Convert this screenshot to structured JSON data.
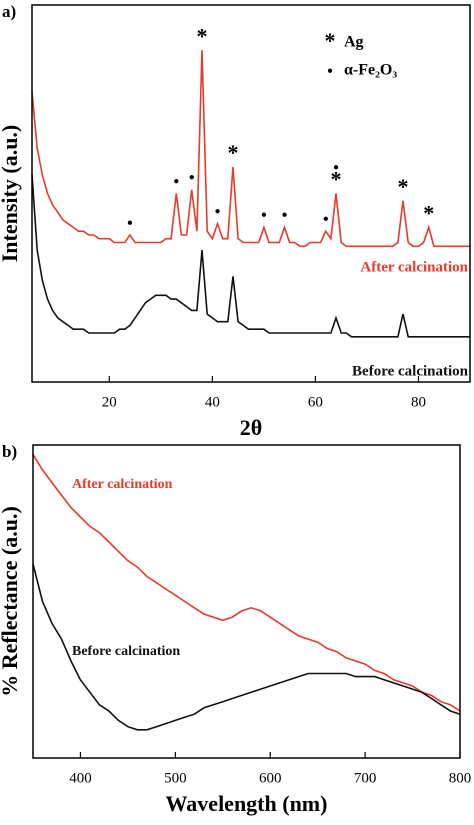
{
  "chart_data": [
    {
      "type": "line",
      "panel_label": "a)",
      "xlabel": "2θ",
      "ylabel": "Intensity (a.u.)",
      "xlim": [
        5,
        90
      ],
      "xticks": [
        20,
        40,
        60,
        80
      ],
      "ylim": [
        0,
        100
      ],
      "x": [
        5,
        6,
        7,
        8,
        9,
        10,
        11,
        12,
        13,
        14,
        15,
        16,
        17,
        18,
        19,
        20,
        21,
        22,
        23,
        24,
        25,
        26,
        27,
        28,
        29,
        30,
        31,
        32,
        33,
        34,
        35,
        36,
        37,
        38,
        39,
        40,
        41,
        42,
        43,
        44,
        45,
        46,
        47,
        48,
        49,
        50,
        51,
        52,
        53,
        54,
        55,
        56,
        57,
        58,
        59,
        60,
        61,
        62,
        63,
        64,
        65,
        66,
        67,
        68,
        69,
        70,
        71,
        72,
        73,
        74,
        75,
        76,
        77,
        78,
        79,
        80,
        81,
        82,
        83,
        84,
        85,
        86,
        87,
        88,
        89,
        90
      ],
      "series": [
        {
          "name": "After calcination",
          "color": "#e8392b",
          "values": [
            77,
            62,
            55,
            50,
            47,
            45,
            43,
            42,
            41,
            40,
            40,
            39,
            39,
            38,
            38,
            38,
            37,
            37,
            37,
            39,
            37,
            37,
            37,
            37,
            37,
            37,
            38,
            38,
            50,
            39,
            39,
            51,
            40,
            88,
            40,
            38,
            42,
            38,
            38,
            57,
            38,
            37,
            37,
            37,
            37,
            41,
            37,
            37,
            37,
            41,
            37,
            37,
            36,
            36,
            37,
            37,
            37,
            40,
            38,
            50,
            37,
            36,
            36,
            36,
            36,
            36,
            36,
            36,
            36,
            36,
            36,
            37,
            48,
            37,
            36,
            36,
            37,
            41,
            36,
            36,
            36,
            36,
            36,
            36,
            36,
            36
          ]
        },
        {
          "name": "Before calcination",
          "color": "#111111",
          "values": [
            55,
            35,
            27,
            22,
            19,
            17,
            16,
            15,
            14,
            14,
            14,
            13,
            13,
            13,
            13,
            13,
            13,
            14,
            14,
            15,
            17,
            19,
            21,
            22,
            23,
            23,
            23,
            22,
            22,
            21,
            20,
            19,
            19,
            35,
            18,
            17,
            16,
            16,
            16,
            28,
            16,
            15,
            14,
            14,
            14,
            14,
            13,
            13,
            13,
            13,
            13,
            13,
            13,
            13,
            13,
            13,
            13,
            13,
            13,
            17,
            13,
            13,
            12,
            12,
            12,
            12,
            12,
            12,
            12,
            12,
            12,
            12,
            18,
            12,
            12,
            12,
            12,
            12,
            12,
            12,
            12,
            12,
            12,
            12,
            12,
            12
          ]
        }
      ],
      "peak_legend": [
        {
          "symbol": "*",
          "label": "Ag"
        },
        {
          "symbol": "●",
          "label": "α-Fe₂O₃"
        }
      ],
      "markers": [
        {
          "x": 24,
          "symbol": "●"
        },
        {
          "x": 33,
          "symbol": "●"
        },
        {
          "x": 36,
          "symbol": "●"
        },
        {
          "x": 38,
          "symbol": "*"
        },
        {
          "x": 41,
          "symbol": "●"
        },
        {
          "x": 44,
          "symbol": "*"
        },
        {
          "x": 50,
          "symbol": "●"
        },
        {
          "x": 54,
          "symbol": "●"
        },
        {
          "x": 62,
          "symbol": "●"
        },
        {
          "x": 64,
          "symbol": "*"
        },
        {
          "x": 64,
          "symbol": "●"
        },
        {
          "x": 77,
          "symbol": "*"
        },
        {
          "x": 82,
          "symbol": "*"
        }
      ]
    },
    {
      "type": "line",
      "panel_label": "b)",
      "xlabel": "Wavelength (nm)",
      "ylabel": "% Reflectance (a.u.)",
      "xlim": [
        350,
        800
      ],
      "xticks": [
        400,
        500,
        600,
        700,
        800
      ],
      "ylim": [
        0,
        100
      ],
      "x": [
        350,
        360,
        370,
        380,
        390,
        400,
        410,
        420,
        430,
        440,
        450,
        460,
        470,
        480,
        490,
        500,
        510,
        520,
        530,
        540,
        550,
        560,
        570,
        580,
        590,
        600,
        610,
        620,
        630,
        640,
        650,
        660,
        670,
        680,
        690,
        700,
        710,
        720,
        730,
        740,
        750,
        760,
        770,
        780,
        790,
        800
      ],
      "series": [
        {
          "name": "After calcination",
          "color": "#e8392b",
          "values": [
            97,
            92,
            88,
            84,
            80,
            77,
            74,
            72,
            69,
            66,
            63,
            61,
            58,
            56,
            54,
            52,
            50,
            48,
            46,
            45,
            44,
            45,
            47,
            48,
            47,
            45,
            43,
            41,
            39,
            38,
            37,
            35,
            34,
            32,
            31,
            30,
            28,
            27,
            25,
            24,
            23,
            21,
            20,
            18,
            17,
            15
          ]
        },
        {
          "name": "Before calcination",
          "color": "#111111",
          "values": [
            62,
            50,
            43,
            38,
            31,
            25,
            21,
            17,
            15,
            12,
            10,
            9,
            9,
            10,
            11,
            12,
            13,
            14,
            16,
            17,
            18,
            19,
            20,
            21,
            22,
            23,
            24,
            25,
            26,
            27,
            27,
            27,
            27,
            27,
            26,
            26,
            26,
            25,
            24,
            23,
            22,
            21,
            19,
            17,
            15,
            14
          ]
        }
      ]
    }
  ]
}
